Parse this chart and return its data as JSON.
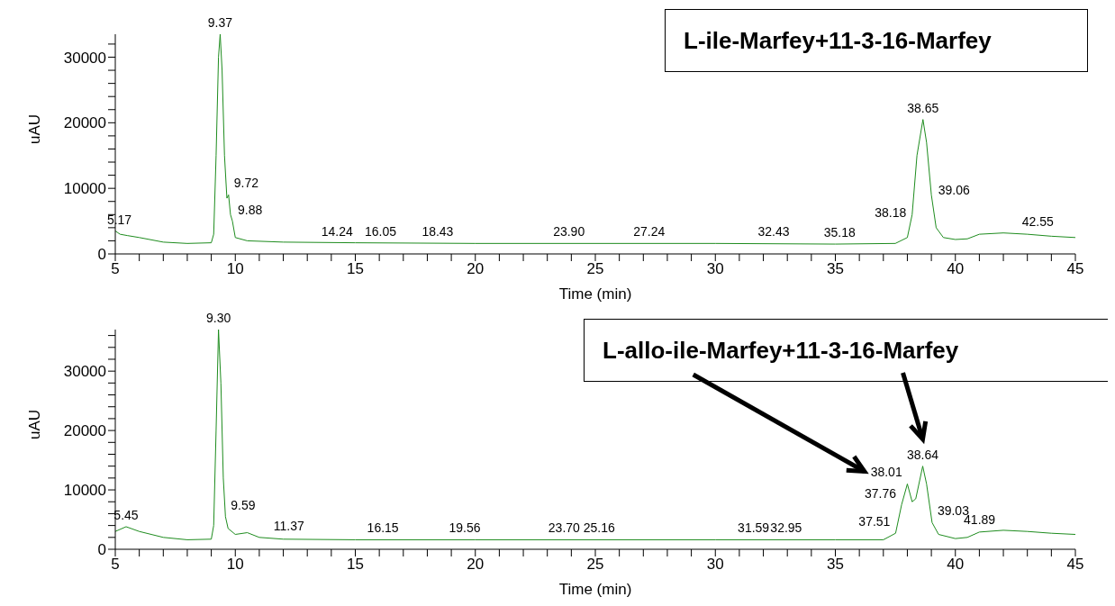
{
  "chart_data": [
    {
      "type": "line",
      "xlabel": "Time (min)",
      "ylabel": "uAU",
      "xlim": [
        5,
        45
      ],
      "ylim": [
        0,
        33500
      ],
      "xticks": [
        5,
        {
          "value": 6,
          "label": null
        },
        {
          "value": 7,
          "label": null
        },
        {
          "value": 8,
          "label": null
        },
        {
          "value": 9,
          "label": null
        },
        10,
        {
          "value": 11,
          "label": null
        },
        {
          "value": 12,
          "label": null
        },
        {
          "value": 13,
          "label": null
        },
        {
          "value": 14,
          "label": null
        },
        15,
        {
          "value": 16,
          "label": null
        },
        {
          "value": 17,
          "label": null
        },
        {
          "value": 18,
          "label": null
        },
        {
          "value": 19,
          "label": null
        },
        20,
        {
          "value": 21,
          "label": null
        },
        {
          "value": 22,
          "label": null
        },
        {
          "value": 23,
          "label": null
        },
        {
          "value": 24,
          "label": null
        },
        25,
        {
          "value": 26,
          "label": null
        },
        {
          "value": 27,
          "label": null
        },
        {
          "value": 28,
          "label": null
        },
        {
          "value": 29,
          "label": null
        },
        30,
        {
          "value": 31,
          "label": null
        },
        {
          "value": 32,
          "label": null
        },
        {
          "value": 33,
          "label": null
        },
        {
          "value": 34,
          "label": null
        },
        35,
        {
          "value": 36,
          "label": null
        },
        {
          "value": 37,
          "label": null
        },
        {
          "value": 38,
          "label": null
        },
        {
          "value": 39,
          "label": null
        },
        40,
        {
          "value": 41,
          "label": null
        },
        {
          "value": 42,
          "label": null
        },
        {
          "value": 43,
          "label": null
        },
        {
          "value": 44,
          "label": null
        },
        45
      ],
      "yticks": [
        0,
        {
          "value": 2000,
          "label": null
        },
        {
          "value": 4000,
          "label": null
        },
        {
          "value": 6000,
          "label": null
        },
        {
          "value": 8000,
          "label": null
        },
        10000,
        {
          "value": 12000,
          "label": null
        },
        {
          "value": 14000,
          "label": null
        },
        {
          "value": 16000,
          "label": null
        },
        {
          "value": 18000,
          "label": null
        },
        20000,
        {
          "value": 22000,
          "label": null
        },
        {
          "value": 24000,
          "label": null
        },
        {
          "value": 26000,
          "label": null
        },
        {
          "value": 28000,
          "label": null
        },
        30000,
        {
          "value": 32000,
          "label": null
        }
      ],
      "grid": false,
      "legend": false,
      "marker": "none",
      "series": [
        {
          "color": "#1e8c1e",
          "x": [
            5,
            5.2,
            5.5,
            6,
            7,
            8,
            9,
            9.1,
            9.2,
            9.3,
            9.37,
            9.45,
            9.55,
            9.65,
            9.72,
            9.8,
            9.88,
            10,
            10.5,
            12,
            15,
            20,
            25,
            30,
            35,
            37.5,
            38,
            38.2,
            38.4,
            38.65,
            38.8,
            39,
            39.2,
            39.5,
            40,
            40.5,
            41,
            42,
            43,
            44,
            45
          ],
          "values": [
            3500,
            3000,
            2800,
            2500,
            1800,
            1600,
            1700,
            3000,
            15000,
            30000,
            33500,
            28000,
            15000,
            8500,
            9000,
            6000,
            5000,
            2500,
            2000,
            1800,
            1700,
            1600,
            1600,
            1600,
            1500,
            1600,
            2500,
            6000,
            15000,
            20500,
            17000,
            9000,
            4000,
            2500,
            2200,
            2300,
            3000,
            3200,
            3000,
            2700,
            2500
          ]
        }
      ],
      "annotations": [
        "L-ile-Marfey+11-3-16-Marfey",
        {
          "text": "5.17",
          "x": 5.17,
          "y": 3500
        },
        {
          "text": "9.37",
          "x": 9.37,
          "y": 33500
        },
        {
          "text": "9.72",
          "x": 9.72,
          "y": 9000
        },
        {
          "text": "9.88",
          "x": 9.88,
          "y": 5000
        },
        {
          "text": "14.24",
          "x": 14.24,
          "y": 1600
        },
        {
          "text": "16.05",
          "x": 16.05,
          "y": 1600
        },
        {
          "text": "18.43",
          "x": 18.43,
          "y": 1600
        },
        {
          "text": "23.90",
          "x": 23.9,
          "y": 1600
        },
        {
          "text": "27.24",
          "x": 27.24,
          "y": 1600
        },
        {
          "text": "32.43",
          "x": 32.43,
          "y": 1600
        },
        {
          "text": "35.18",
          "x": 35.18,
          "y": 1500
        },
        {
          "text": "38.18",
          "x": 38.18,
          "y": 4500
        },
        {
          "text": "38.65",
          "x": 38.65,
          "y": 20500
        },
        {
          "text": "39.06",
          "x": 39.06,
          "y": 8000
        },
        {
          "text": "42.55",
          "x": 42.55,
          "y": 3100
        }
      ]
    },
    {
      "type": "line",
      "xlabel": "Time (min)",
      "ylabel": "uAU",
      "xlim": [
        5,
        45
      ],
      "ylim": [
        0,
        37000
      ],
      "xticks": [
        5,
        {
          "value": 6,
          "label": null
        },
        {
          "value": 7,
          "label": null
        },
        {
          "value": 8,
          "label": null
        },
        {
          "value": 9,
          "label": null
        },
        10,
        {
          "value": 11,
          "label": null
        },
        {
          "value": 12,
          "label": null
        },
        {
          "value": 13,
          "label": null
        },
        {
          "value": 14,
          "label": null
        },
        15,
        {
          "value": 16,
          "label": null
        },
        {
          "value": 17,
          "label": null
        },
        {
          "value": 18,
          "label": null
        },
        {
          "value": 19,
          "label": null
        },
        20,
        {
          "value": 21,
          "label": null
        },
        {
          "value": 22,
          "label": null
        },
        {
          "value": 23,
          "label": null
        },
        {
          "value": 24,
          "label": null
        },
        25,
        {
          "value": 26,
          "label": null
        },
        {
          "value": 27,
          "label": null
        },
        {
          "value": 28,
          "label": null
        },
        {
          "value": 29,
          "label": null
        },
        30,
        {
          "value": 31,
          "label": null
        },
        {
          "value": 32,
          "label": null
        },
        {
          "value": 33,
          "label": null
        },
        {
          "value": 34,
          "label": null
        },
        35,
        {
          "value": 36,
          "label": null
        },
        {
          "value": 37,
          "label": null
        },
        {
          "value": 38,
          "label": null
        },
        {
          "value": 39,
          "label": null
        },
        40,
        {
          "value": 41,
          "label": null
        },
        {
          "value": 42,
          "label": null
        },
        {
          "value": 43,
          "label": null
        },
        {
          "value": 44,
          "label": null
        },
        45
      ],
      "yticks": [
        0,
        {
          "value": 2000,
          "label": null
        },
        {
          "value": 4000,
          "label": null
        },
        {
          "value": 6000,
          "label": null
        },
        {
          "value": 8000,
          "label": null
        },
        10000,
        {
          "value": 12000,
          "label": null
        },
        {
          "value": 14000,
          "label": null
        },
        {
          "value": 16000,
          "label": null
        },
        {
          "value": 18000,
          "label": null
        },
        20000,
        {
          "value": 22000,
          "label": null
        },
        {
          "value": 24000,
          "label": null
        },
        {
          "value": 26000,
          "label": null
        },
        {
          "value": 28000,
          "label": null
        },
        30000,
        {
          "value": 32000,
          "label": null
        },
        {
          "value": 34000,
          "label": null
        },
        {
          "value": 36000,
          "label": null
        }
      ],
      "grid": false,
      "legend": false,
      "marker": "none",
      "series": [
        {
          "color": "#1e8c1e",
          "x": [
            5,
            5.45,
            6,
            7,
            8,
            9,
            9.1,
            9.2,
            9.3,
            9.4,
            9.5,
            9.59,
            9.7,
            10,
            10.5,
            11,
            12,
            15,
            20,
            25,
            30,
            35,
            37,
            37.51,
            37.76,
            38.0,
            38.2,
            38.35,
            38.64,
            38.8,
            39.03,
            39.3,
            40,
            40.5,
            41,
            42,
            43,
            44,
            45
          ],
          "values": [
            3000,
            3800,
            3000,
            2000,
            1600,
            1700,
            4000,
            20000,
            37000,
            28000,
            12000,
            5500,
            3500,
            2500,
            2800,
            2000,
            1700,
            1600,
            1600,
            1600,
            1600,
            1600,
            1600,
            2700,
            7500,
            11000,
            8000,
            8500,
            14000,
            11000,
            4500,
            2500,
            1800,
            2000,
            2900,
            3200,
            3000,
            2700,
            2500
          ]
        }
      ],
      "annotations": [
        "L-allo-ile-Marfey+11-3-16-Marfey",
        {
          "text": "5.45",
          "x": 5.45,
          "y": 3800
        },
        {
          "text": "9.30",
          "x": 9.3,
          "y": 37000
        },
        {
          "text": "9.59",
          "x": 9.59,
          "y": 5500
        },
        {
          "text": "11.37",
          "x": 11.37,
          "y": 2000
        },
        {
          "text": "16.15",
          "x": 16.15,
          "y": 1600
        },
        {
          "text": "19.56",
          "x": 19.56,
          "y": 1600
        },
        {
          "text": "23.70",
          "x": 23.7,
          "y": 1600
        },
        {
          "text": "25.16",
          "x": 25.16,
          "y": 1600
        },
        {
          "text": "31.59",
          "x": 31.59,
          "y": 1600
        },
        {
          "text": "32.95",
          "x": 32.95,
          "y": 1600
        },
        {
          "text": "37.51",
          "x": 37.51,
          "y": 2700
        },
        {
          "text": "37.76",
          "x": 37.76,
          "y": 7500
        },
        {
          "text": "38.01",
          "x": 38.01,
          "y": 11000
        },
        {
          "text": "38.64",
          "x": 38.64,
          "y": 14000
        },
        {
          "text": "39.03",
          "x": 39.03,
          "y": 4500
        },
        {
          "text": "41.89",
          "x": 41.89,
          "y": 3000
        }
      ]
    }
  ]
}
